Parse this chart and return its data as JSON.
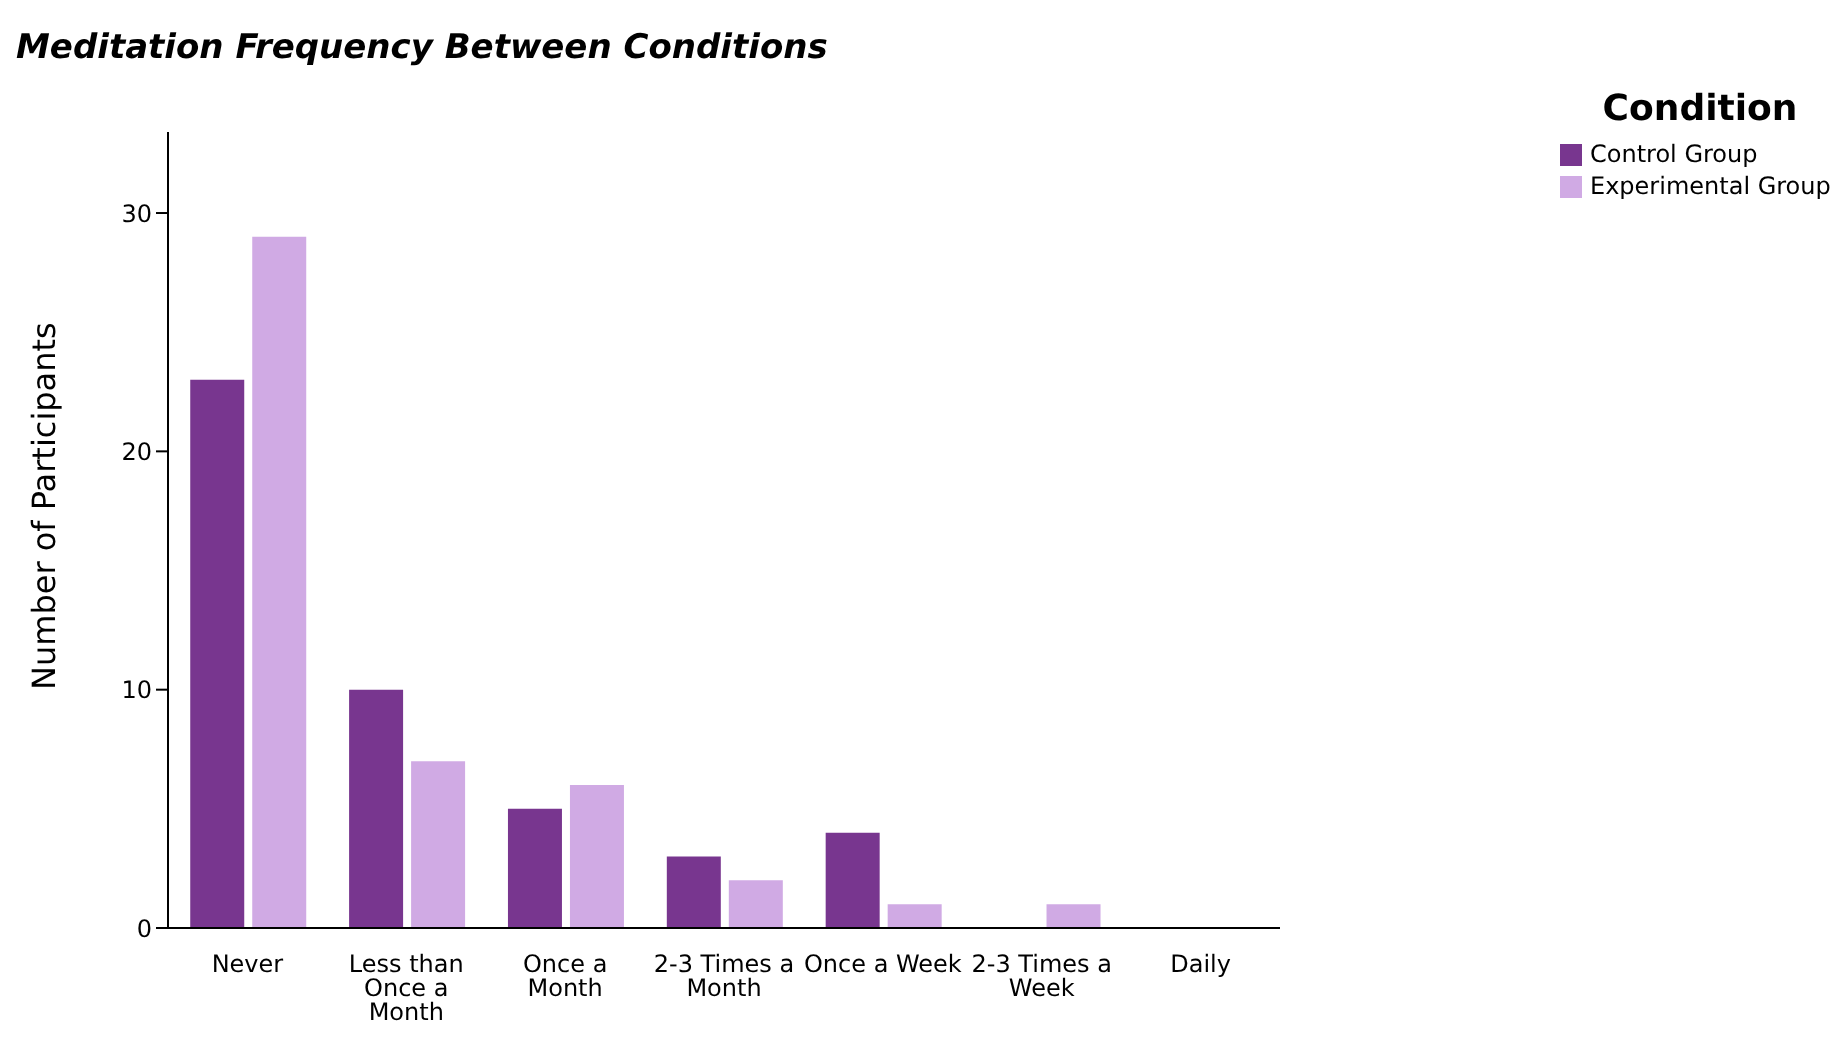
{
  "chart_data": {
    "type": "bar",
    "title": "Meditation Frequency Between Conditions",
    "ylabel": "Number of Participants",
    "legend_title": "Condition",
    "legend": "top right",
    "grid": false,
    "categories": [
      "Never",
      "Less than Once a Month",
      "Once a Month",
      "2-3 Times a Month",
      "Once a Week",
      "2-3 Times a Week",
      "Daily"
    ],
    "series": [
      {
        "name": "Control Group",
        "color": "#78368f",
        "values": [
          23,
          10,
          5,
          3,
          4,
          0,
          0
        ]
      },
      {
        "name": "Experimental Group",
        "color": "#d0aae4",
        "values": [
          29,
          7,
          6,
          2,
          1,
          1,
          0
        ]
      }
    ],
    "ylim": [
      0,
      33.4
    ],
    "yticks": [
      0,
      10,
      20,
      30
    ]
  }
}
